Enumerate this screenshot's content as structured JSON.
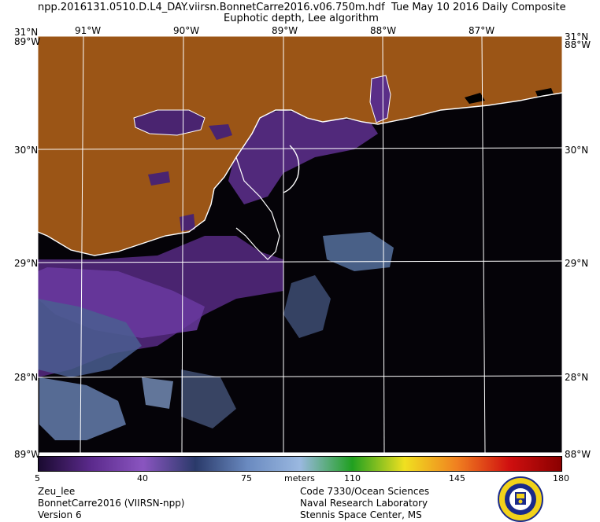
{
  "header": {
    "filename": "npp.2016131.0510.D.L4_DAY.viirsn.BonnetCarre2016.v06.750m.hdf",
    "date": "Tue May 10 2016 Daily Composite",
    "subtitle": "Euphotic depth, Lee algorithm"
  },
  "map": {
    "lon_labels": [
      "91°W",
      "90°W",
      "89°W",
      "88°W",
      "87°W"
    ],
    "lat_labels": [
      "30°N",
      "29°N",
      "28°N"
    ],
    "corner_top": "31°N",
    "corner_left_top": "89°W",
    "corner_right_top": "88°W",
    "corner_left_bottom": "89°W",
    "corner_right_bottom": "88°W",
    "colors": {
      "land": "#9b5516",
      "coast": "#ffffff",
      "ocean_dark": "#050308",
      "grid": "#ffffff"
    }
  },
  "colorbar": {
    "ticks": [
      "5",
      "40",
      "75",
      "110",
      "145",
      "180"
    ],
    "unit": "meters",
    "colors": [
      "#1a0a30",
      "#5b2a8c",
      "#8a55c0",
      "#2a3a6a",
      "#6a8ac0",
      "#9ab8e0",
      "#20a020",
      "#f0e020",
      "#f08020",
      "#d01010",
      "#8a0000"
    ]
  },
  "footer": {
    "left": [
      "Zeu_lee",
      "BonnetCarre2016 (VIIRSN-npp)",
      "Version 6"
    ],
    "right": [
      "Code 7330/Ocean Sciences",
      "Naval Research Laboratory",
      "Stennis Space Center, MS"
    ]
  }
}
